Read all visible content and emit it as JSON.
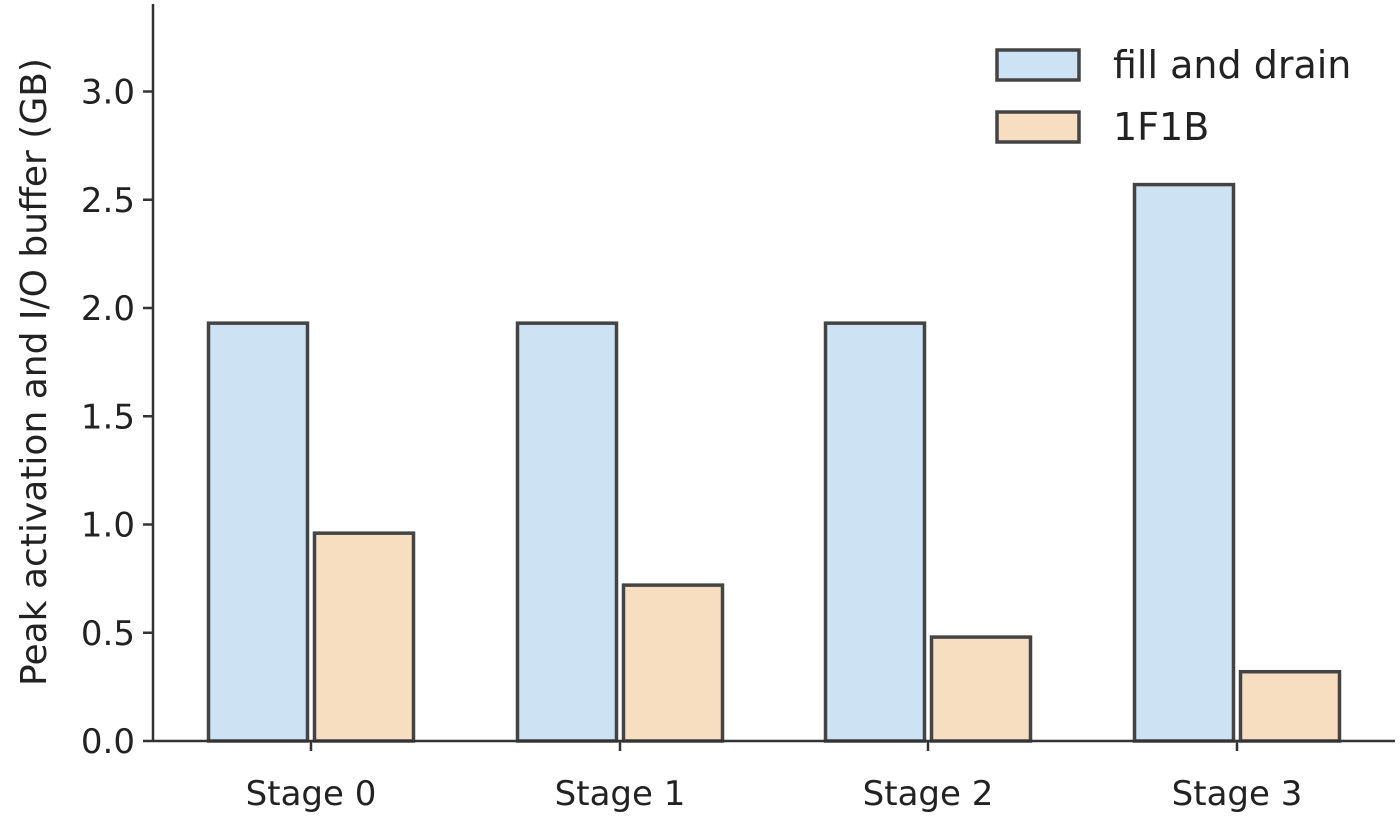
{
  "chart_data": {
    "type": "bar",
    "title": "",
    "xlabel": "",
    "ylabel": "Peak activation and I/O buffer (GB)",
    "categories": [
      "Stage 0",
      "Stage 1",
      "Stage 2",
      "Stage 3"
    ],
    "series": [
      {
        "name": "fill and drain",
        "values": [
          1.93,
          1.93,
          1.93,
          2.57
        ],
        "color": "#cde2f3"
      },
      {
        "name": "1F1B",
        "values": [
          0.96,
          0.72,
          0.48,
          0.32
        ],
        "color": "#f8dec1"
      }
    ],
    "ylim": [
      0,
      3.4
    ],
    "yticks": [
      0.0,
      0.5,
      1.0,
      1.5,
      2.0,
      2.5,
      3.0
    ],
    "ytick_labels": [
      "0.0",
      "0.5",
      "1.0",
      "1.5",
      "2.0",
      "2.5",
      "3.0"
    ],
    "grid": false,
    "legend_position": "top-right",
    "edge_color": "#444444"
  }
}
